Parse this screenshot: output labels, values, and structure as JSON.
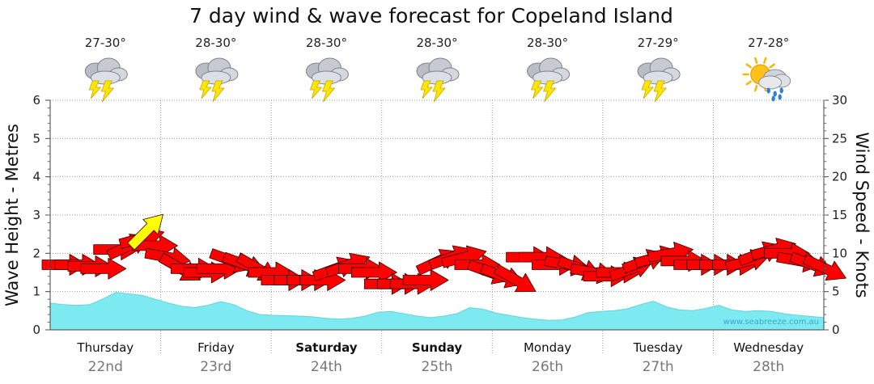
{
  "chart_data": {
    "type": "area",
    "title": "7 day wind & wave forecast for Copeland Island",
    "ylabel_left": "Wave Height - Metres",
    "ylabel_right": "Wind Speed - Knots",
    "ylim_left": [
      0,
      6
    ],
    "ylim_right": [
      0,
      30
    ],
    "yticks_left": [
      "0",
      "1",
      "2",
      "3",
      "4",
      "5",
      "6"
    ],
    "yticks_right": [
      "0",
      "5",
      "10",
      "15",
      "20",
      "25",
      "30"
    ],
    "watermark": "www.seabreeze.com.au",
    "days": [
      {
        "name": "Thursday",
        "date": "22nd",
        "temp": "27-30°",
        "icon": "thunderstorm-icon",
        "bold": false
      },
      {
        "name": "Friday",
        "date": "23rd",
        "temp": "28-30°",
        "icon": "thunderstorm-icon",
        "bold": false
      },
      {
        "name": "Saturday",
        "date": "24th",
        "temp": "28-30°",
        "icon": "thunderstorm-icon",
        "bold": true
      },
      {
        "name": "Sunday",
        "date": "25th",
        "temp": "28-30°",
        "icon": "thunderstorm-icon",
        "bold": true
      },
      {
        "name": "Monday",
        "date": "26th",
        "temp": "28-30°",
        "icon": "thunderstorm-icon",
        "bold": false
      },
      {
        "name": "Tuesday",
        "date": "27th",
        "temp": "27-29°",
        "icon": "thunderstorm-icon",
        "bold": false
      },
      {
        "name": "Wednesday",
        "date": "28th",
        "temp": "27-28°",
        "icon": "sun-rain-cloud-icon",
        "bold": false
      }
    ],
    "wave_height_m": [
      0.7,
      0.66,
      0.64,
      0.66,
      0.8,
      0.98,
      0.94,
      0.9,
      0.8,
      0.7,
      0.62,
      0.58,
      0.64,
      0.74,
      0.66,
      0.5,
      0.4,
      0.38,
      0.37,
      0.36,
      0.34,
      0.3,
      0.28,
      0.3,
      0.36,
      0.46,
      0.48,
      0.42,
      0.36,
      0.32,
      0.36,
      0.42,
      0.58,
      0.54,
      0.44,
      0.38,
      0.32,
      0.28,
      0.25,
      0.26,
      0.33,
      0.45,
      0.48,
      0.5,
      0.55,
      0.66,
      0.75,
      0.6,
      0.52,
      0.5,
      0.56,
      0.64,
      0.52,
      0.48,
      0.5,
      0.48,
      0.42,
      0.38,
      0.35,
      0.32
    ],
    "wind_speed_kt": [
      8.5,
      8.5,
      8.3,
      8.0,
      10.5,
      11.0,
      12.0,
      11.0,
      9.5,
      8.0,
      8.0,
      7.5,
      8.0,
      9.0,
      8.5,
      8.0,
      7.5,
      6.5,
      6.5,
      6.5,
      6.5,
      8.0,
      8.5,
      8.0,
      7.5,
      6.0,
      6.0,
      6.0,
      6.5,
      9.0,
      9.5,
      9.5,
      8.5,
      7.5,
      7.0,
      6.5,
      9.5,
      9.5,
      8.5,
      8.5,
      8.0,
      7.5,
      7.0,
      7.5,
      8.0,
      9.0,
      9.5,
      10.0,
      9.0,
      8.5,
      8.5,
      8.5,
      8.5,
      9.0,
      10.0,
      10.5,
      10.0,
      9.0,
      8.5,
      8.0
    ],
    "wind_dir_deg": [
      90,
      90,
      90,
      90,
      90,
      65,
      75,
      90,
      100,
      120,
      90,
      90,
      90,
      110,
      110,
      120,
      90,
      90,
      90,
      90,
      90,
      70,
      70,
      90,
      90,
      90,
      90,
      90,
      90,
      65,
      70,
      75,
      90,
      110,
      110,
      120,
      90,
      90,
      90,
      100,
      110,
      100,
      90,
      90,
      70,
      70,
      75,
      80,
      90,
      90,
      90,
      90,
      90,
      75,
      70,
      75,
      90,
      100,
      110,
      115
    ],
    "gust_arrow": {
      "index": 4,
      "speed_kt": 13.0,
      "dir_deg": 45
    }
  }
}
